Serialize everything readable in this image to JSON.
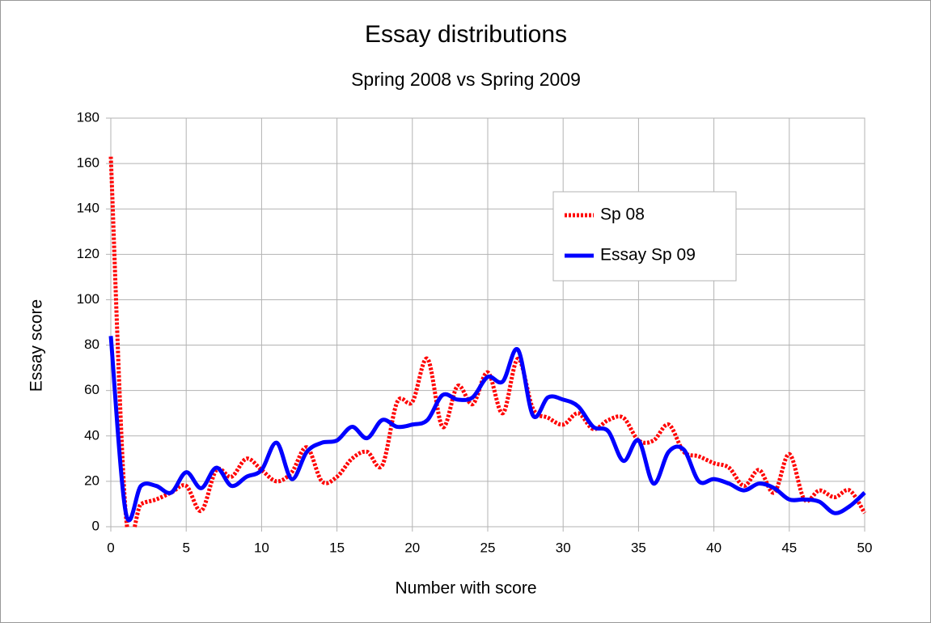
{
  "chart_data": {
    "type": "line",
    "title": "Essay distributions",
    "subtitle": "Spring 2008 vs Spring 2009",
    "x_label": "Number with score",
    "y_label": "Essay score",
    "x": [
      0,
      1,
      2,
      3,
      4,
      5,
      6,
      7,
      8,
      9,
      10,
      11,
      12,
      13,
      14,
      15,
      16,
      17,
      18,
      19,
      20,
      21,
      22,
      23,
      24,
      25,
      26,
      27,
      28,
      29,
      30,
      31,
      32,
      33,
      34,
      35,
      36,
      37,
      38,
      39,
      40,
      41,
      42,
      43,
      44,
      45,
      46,
      47,
      48,
      49,
      50
    ],
    "series": [
      {
        "name": "Sp 08",
        "color": "#ff0000",
        "dash": "dotted",
        "values": [
          163,
          5,
          10,
          12,
          15,
          18,
          7,
          25,
          22,
          30,
          25,
          20,
          24,
          35,
          20,
          22,
          30,
          33,
          27,
          55,
          55,
          74,
          44,
          62,
          54,
          68,
          50,
          74,
          52,
          48,
          45,
          50,
          43,
          47,
          48,
          38,
          38,
          45,
          33,
          31,
          28,
          26,
          18,
          25,
          15,
          32,
          12,
          16,
          13,
          16,
          6
        ]
      },
      {
        "name": "Essay Sp 09",
        "color": "#0000ff",
        "dash": "solid",
        "values": [
          84,
          6,
          18,
          18,
          15,
          24,
          17,
          26,
          18,
          22,
          25,
          37,
          21,
          33,
          37,
          38,
          44,
          39,
          47,
          44,
          45,
          47,
          58,
          56,
          57,
          66,
          64,
          78,
          49,
          57,
          56,
          53,
          44,
          42,
          29,
          38,
          19,
          33,
          34,
          20,
          21,
          19,
          16,
          19,
          17,
          12,
          12,
          11,
          6,
          9,
          15
        ]
      }
    ],
    "xlim": [
      0,
      50
    ],
    "xticks": [
      0,
      5,
      10,
      15,
      20,
      25,
      30,
      35,
      40,
      45,
      50
    ],
    "ylim": [
      0,
      180
    ],
    "yticks": [
      0,
      20,
      40,
      60,
      80,
      100,
      120,
      140,
      160,
      180
    ],
    "grid": true,
    "smooth": true,
    "legend": "upper-right"
  }
}
